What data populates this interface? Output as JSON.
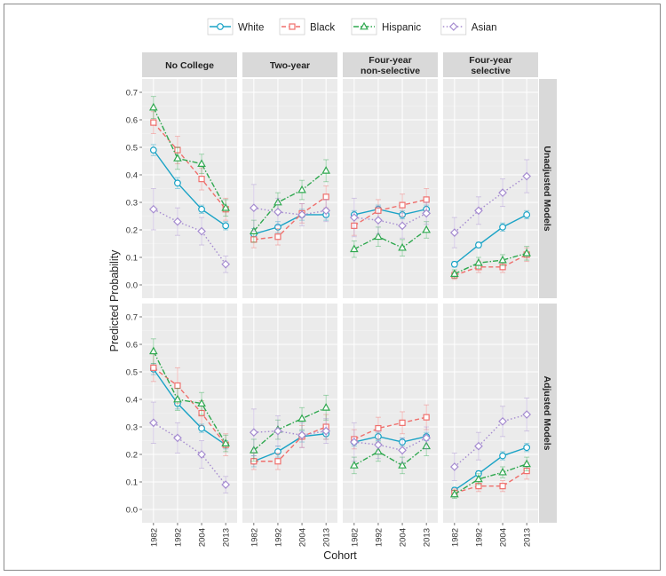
{
  "chart_data": {
    "type": "line",
    "layout": "faceted grid, 2 rows x 4 columns",
    "xlabel": "Cohort",
    "ylabel": "Predicted Probability",
    "x": [
      "1982",
      "1992",
      "2004",
      "2013"
    ],
    "ylim": [
      0,
      0.7
    ],
    "yticks": [
      "0.0",
      "0.1",
      "0.2",
      "0.3",
      "0.4",
      "0.5",
      "0.6",
      "0.7"
    ],
    "grid": true,
    "legend_position": "top",
    "legend": [
      {
        "name": "White",
        "color": "#1aa3c6",
        "marker": "circle",
        "dash": "solid"
      },
      {
        "name": "Black",
        "color": "#ef6f6c",
        "marker": "square",
        "dash": "dashed"
      },
      {
        "name": "Hispanic",
        "color": "#2fa84f",
        "marker": "triangle",
        "dash": "dashdot"
      },
      {
        "name": "Asian",
        "color": "#a58bd0",
        "marker": "diamond",
        "dash": "dotted"
      }
    ],
    "columns": [
      {
        "label": [
          "No College"
        ]
      },
      {
        "label": [
          "Two-year"
        ]
      },
      {
        "label": [
          "Four-year",
          "non-selective"
        ]
      },
      {
        "label": [
          "Four-year",
          "selective"
        ]
      }
    ],
    "rows": [
      {
        "label": "Unadjusted Models",
        "panels": [
          {
            "series": {
              "White": {
                "values": [
                  0.49,
                  0.37,
                  0.275,
                  0.215
                ],
                "err": [
                  0.02,
                  0.02,
                  0.015,
                  0.015
                ]
              },
              "Black": {
                "values": [
                  0.59,
                  0.49,
                  0.385,
                  0.275
                ],
                "err": [
                  0.04,
                  0.05,
                  0.04,
                  0.04
                ]
              },
              "Hispanic": {
                "values": [
                  0.645,
                  0.46,
                  0.44,
                  0.28
                ],
                "err": [
                  0.04,
                  0.04,
                  0.035,
                  0.03
                ]
              },
              "Asian": {
                "values": [
                  0.275,
                  0.23,
                  0.195,
                  0.075
                ],
                "err": [
                  0.075,
                  0.05,
                  0.05,
                  0.03
                ]
              }
            }
          },
          {
            "series": {
              "White": {
                "values": [
                  0.185,
                  0.21,
                  0.255,
                  0.255
                ],
                "err": [
                  0.02,
                  0.02,
                  0.02,
                  0.02
                ]
              },
              "Black": {
                "values": [
                  0.165,
                  0.175,
                  0.26,
                  0.32
                ],
                "err": [
                  0.03,
                  0.03,
                  0.035,
                  0.04
                ]
              },
              "Hispanic": {
                "values": [
                  0.195,
                  0.3,
                  0.345,
                  0.415
                ],
                "err": [
                  0.04,
                  0.035,
                  0.035,
                  0.04
                ]
              },
              "Asian": {
                "values": [
                  0.28,
                  0.265,
                  0.255,
                  0.27
                ],
                "err": [
                  0.085,
                  0.05,
                  0.04,
                  0.04
                ]
              }
            }
          },
          {
            "series": {
              "White": {
                "values": [
                  0.255,
                  0.275,
                  0.255,
                  0.275
                ],
                "err": [
                  0.015,
                  0.015,
                  0.015,
                  0.015
                ]
              },
              "Black": {
                "values": [
                  0.215,
                  0.27,
                  0.29,
                  0.31
                ],
                "err": [
                  0.035,
                  0.04,
                  0.04,
                  0.04
                ]
              },
              "Hispanic": {
                "values": [
                  0.13,
                  0.175,
                  0.135,
                  0.2
                ],
                "err": [
                  0.03,
                  0.035,
                  0.03,
                  0.03
                ]
              },
              "Asian": {
                "values": [
                  0.245,
                  0.235,
                  0.215,
                  0.26
                ],
                "err": [
                  0.07,
                  0.05,
                  0.045,
                  0.04
                ]
              }
            }
          },
          {
            "series": {
              "White": {
                "values": [
                  0.075,
                  0.145,
                  0.21,
                  0.255
                ],
                "err": [
                  0.01,
                  0.01,
                  0.015,
                  0.015
                ]
              },
              "Black": {
                "values": [
                  0.035,
                  0.065,
                  0.065,
                  0.11
                ],
                "err": [
                  0.015,
                  0.02,
                  0.02,
                  0.025
                ]
              },
              "Hispanic": {
                "values": [
                  0.04,
                  0.08,
                  0.09,
                  0.115
                ],
                "err": [
                  0.015,
                  0.02,
                  0.02,
                  0.025
                ]
              },
              "Asian": {
                "values": [
                  0.19,
                  0.27,
                  0.335,
                  0.395
                ],
                "err": [
                  0.055,
                  0.05,
                  0.05,
                  0.06
                ]
              }
            }
          }
        ]
      },
      {
        "label": "Adjusted Models",
        "panels": [
          {
            "series": {
              "White": {
                "values": [
                  0.51,
                  0.385,
                  0.295,
                  0.235
                ],
                "err": [
                  0.02,
                  0.02,
                  0.015,
                  0.015
                ]
              },
              "Black": {
                "values": [
                  0.515,
                  0.45,
                  0.35,
                  0.235
                ],
                "err": [
                  0.05,
                  0.065,
                  0.045,
                  0.04
                ]
              },
              "Hispanic": {
                "values": [
                  0.575,
                  0.4,
                  0.385,
                  0.24
                ],
                "err": [
                  0.045,
                  0.04,
                  0.04,
                  0.03
                ]
              },
              "Asian": {
                "values": [
                  0.315,
                  0.26,
                  0.2,
                  0.09
                ],
                "err": [
                  0.075,
                  0.055,
                  0.05,
                  0.03
                ]
              }
            }
          },
          {
            "series": {
              "White": {
                "values": [
                  0.175,
                  0.21,
                  0.265,
                  0.275
                ],
                "err": [
                  0.02,
                  0.02,
                  0.02,
                  0.02
                ]
              },
              "Black": {
                "values": [
                  0.175,
                  0.175,
                  0.265,
                  0.3
                ],
                "err": [
                  0.03,
                  0.03,
                  0.04,
                  0.045
                ]
              },
              "Hispanic": {
                "values": [
                  0.215,
                  0.29,
                  0.33,
                  0.37
                ],
                "err": [
                  0.04,
                  0.035,
                  0.04,
                  0.045
                ]
              },
              "Asian": {
                "values": [
                  0.28,
                  0.285,
                  0.27,
                  0.285
                ],
                "err": [
                  0.085,
                  0.055,
                  0.045,
                  0.045
                ]
              }
            }
          },
          {
            "series": {
              "White": {
                "values": [
                  0.245,
                  0.265,
                  0.245,
                  0.265
                ],
                "err": [
                  0.015,
                  0.015,
                  0.015,
                  0.015
                ]
              },
              "Black": {
                "values": [
                  0.255,
                  0.295,
                  0.315,
                  0.335
                ],
                "err": [
                  0.035,
                  0.04,
                  0.04,
                  0.045
                ]
              },
              "Hispanic": {
                "values": [
                  0.16,
                  0.21,
                  0.16,
                  0.23
                ],
                "err": [
                  0.03,
                  0.035,
                  0.03,
                  0.035
                ]
              },
              "Asian": {
                "values": [
                  0.245,
                  0.235,
                  0.215,
                  0.26
                ],
                "err": [
                  0.07,
                  0.05,
                  0.045,
                  0.04
                ]
              }
            }
          },
          {
            "series": {
              "White": {
                "values": [
                  0.07,
                  0.13,
                  0.195,
                  0.225
                ],
                "err": [
                  0.01,
                  0.01,
                  0.015,
                  0.015
                ]
              },
              "Black": {
                "values": [
                  0.06,
                  0.085,
                  0.085,
                  0.14
                ],
                "err": [
                  0.015,
                  0.02,
                  0.02,
                  0.03
                ]
              },
              "Hispanic": {
                "values": [
                  0.055,
                  0.11,
                  0.135,
                  0.165
                ],
                "err": [
                  0.015,
                  0.02,
                  0.02,
                  0.025
                ]
              },
              "Asian": {
                "values": [
                  0.155,
                  0.23,
                  0.32,
                  0.345
                ],
                "err": [
                  0.05,
                  0.05,
                  0.055,
                  0.06
                ]
              }
            }
          }
        ]
      }
    ]
  }
}
